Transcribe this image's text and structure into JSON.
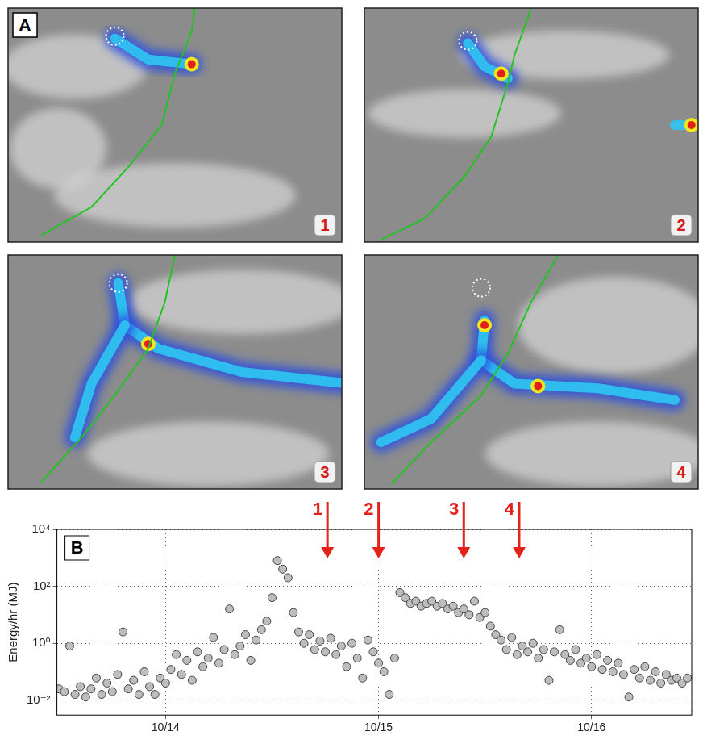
{
  "panel_a": {
    "label": "A",
    "images": [
      {
        "label": "1"
      },
      {
        "label": "2"
      },
      {
        "label": "3"
      },
      {
        "label": "4"
      }
    ]
  },
  "chart_data": {
    "type": "scatter",
    "panel_label": "B",
    "ylabel": "Energy/hr (MJ)",
    "log": "y",
    "grid": true,
    "marker": "circle",
    "xlim": [
      13.49,
      16.47
    ],
    "xticks": [
      {
        "value": 14,
        "label": "10/14"
      },
      {
        "value": 15,
        "label": "10/15"
      },
      {
        "value": 16,
        "label": "10/16"
      }
    ],
    "ylim": [
      0.003,
      10000
    ],
    "yticks": [
      {
        "value": 0.01,
        "label": "10⁻²"
      },
      {
        "value": 1,
        "label": "10⁰"
      },
      {
        "value": 100,
        "label": "10²"
      },
      {
        "value": 10000,
        "label": "10⁴"
      }
    ],
    "annotations": [
      {
        "label": "1",
        "x": 14.76
      },
      {
        "label": "2",
        "x": 15.0
      },
      {
        "label": "3",
        "x": 15.4
      },
      {
        "label": "4",
        "x": 15.66
      }
    ],
    "x": [
      13.5,
      13.525,
      13.55,
      13.575,
      13.6,
      13.625,
      13.65,
      13.675,
      13.7,
      13.725,
      13.75,
      13.775,
      13.8,
      13.825,
      13.85,
      13.875,
      13.9,
      13.925,
      13.95,
      13.975,
      14.0,
      14.025,
      14.05,
      14.075,
      14.1,
      14.125,
      14.15,
      14.175,
      14.2,
      14.225,
      14.25,
      14.275,
      14.3,
      14.325,
      14.35,
      14.375,
      14.4,
      14.425,
      14.45,
      14.475,
      14.5,
      14.525,
      14.55,
      14.575,
      14.6,
      14.625,
      14.65,
      14.675,
      14.7,
      14.725,
      14.75,
      14.775,
      14.8,
      14.825,
      14.85,
      14.875,
      14.9,
      14.925,
      14.95,
      14.975,
      15.0,
      15.025,
      15.05,
      15.075,
      15.1,
      15.125,
      15.15,
      15.175,
      15.2,
      15.225,
      15.25,
      15.275,
      15.3,
      15.325,
      15.35,
      15.375,
      15.4,
      15.425,
      15.45,
      15.475,
      15.5,
      15.525,
      15.55,
      15.575,
      15.6,
      15.625,
      15.65,
      15.675,
      15.7,
      15.725,
      15.75,
      15.775,
      15.8,
      15.825,
      15.85,
      15.875,
      15.9,
      15.925,
      15.95,
      15.975,
      16.0,
      16.025,
      16.05,
      16.075,
      16.1,
      16.125,
      16.15,
      16.175,
      16.2,
      16.225,
      16.25,
      16.275,
      16.3,
      16.325,
      16.35,
      16.375,
      16.4,
      16.425,
      16.45
    ],
    "series": [
      {
        "name": "Energy/hr",
        "color": "#bdbdbd",
        "values": [
          0.025,
          0.02,
          0.8,
          0.016,
          0.03,
          0.013,
          0.025,
          0.06,
          0.016,
          0.04,
          0.02,
          0.08,
          2.5,
          0.025,
          0.05,
          0.016,
          0.1,
          0.03,
          0.016,
          0.06,
          0.04,
          0.12,
          0.4,
          0.08,
          0.25,
          0.05,
          0.5,
          0.15,
          0.3,
          1.6,
          0.2,
          0.6,
          16,
          0.4,
          0.8,
          2,
          0.25,
          1.3,
          3,
          6,
          40,
          800,
          400,
          200,
          12,
          2.5,
          1,
          2,
          0.6,
          1.2,
          0.5,
          1.5,
          0.4,
          0.8,
          0.15,
          1,
          0.3,
          0.06,
          1.3,
          0.5,
          0.2,
          0.1,
          0.016,
          0.3,
          60,
          40,
          25,
          30,
          20,
          25,
          30,
          20,
          25,
          16,
          20,
          12,
          16,
          10,
          30,
          8,
          12,
          4,
          2,
          1.3,
          0.6,
          1.6,
          0.4,
          0.8,
          0.5,
          1,
          0.3,
          0.6,
          0.05,
          0.5,
          3,
          0.4,
          0.25,
          0.6,
          0.2,
          0.3,
          0.15,
          0.4,
          0.12,
          0.25,
          0.1,
          0.2,
          0.08,
          0.013,
          0.12,
          0.06,
          0.15,
          0.05,
          0.1,
          0.04,
          0.08,
          0.05,
          0.06,
          0.04,
          0.06
        ]
      }
    ]
  }
}
